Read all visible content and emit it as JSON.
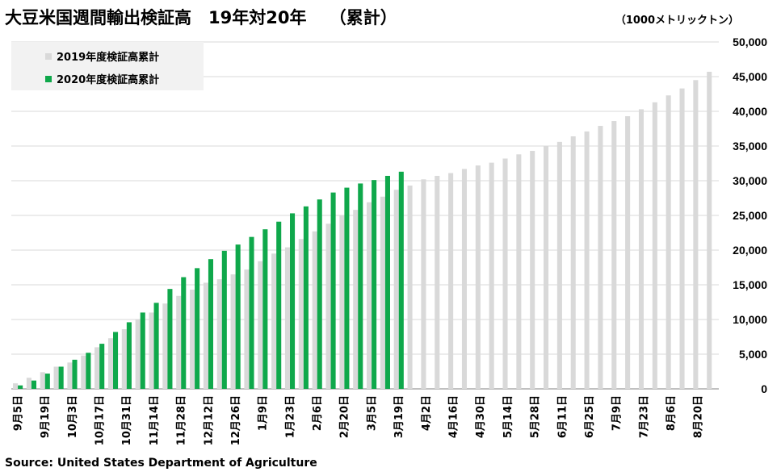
{
  "title": "大豆米国週間輸出検証高　19年対20年　 （累計）",
  "unit_label": "（1000メトリックトン）",
  "source": "Source: United States Department of Agriculture",
  "colors": {
    "series_2019": "#d9d9d9",
    "series_2020": "#0fa84b",
    "grid": "#d9d9d9",
    "axis": "#808080"
  },
  "chart_data": {
    "type": "bar",
    "title": "大豆米国週間輸出検証高　19年対20年　 （累計）",
    "ylabel": "1000メトリックトン",
    "ylim": [
      0,
      50000
    ],
    "yticks": [
      "0",
      "5,000",
      "10,000",
      "15,000",
      "20,000",
      "25,000",
      "30,000",
      "35,000",
      "40,000",
      "45,000",
      "50,000"
    ],
    "xtick_labels": [
      "9月5日",
      "9月19日",
      "10月3日",
      "10月17日",
      "10月31日",
      "11月14日",
      "11月28日",
      "12月12日",
      "12月26日",
      "1月9日",
      "1月23日",
      "2月6日",
      "2月20日",
      "3月5日",
      "3月19日",
      "4月2日",
      "4月16日",
      "4月30日",
      "5月14日",
      "5月28日",
      "6月11日",
      "6月25日",
      "7月9日",
      "7月23日",
      "8月6日",
      "8月20日"
    ],
    "series": [
      {
        "name": "2019年度検証高累計",
        "values": [
          800,
          1600,
          2400,
          3200,
          3800,
          4800,
          6000,
          7300,
          8600,
          10000,
          11000,
          12300,
          13400,
          14300,
          15300,
          15800,
          16500,
          17200,
          18400,
          19500,
          20400,
          21600,
          22700,
          23800,
          25000,
          25800,
          26900,
          27700,
          28700,
          29300,
          30200,
          30700,
          31100,
          31700,
          32200,
          32600,
          33200,
          33800,
          34300,
          35000,
          35600,
          36400,
          37100,
          37900,
          38600,
          39300,
          40300,
          41300,
          42300,
          43300,
          44500,
          45700
        ]
      },
      {
        "name": "2020年度検証高累計",
        "values": [
          500,
          1200,
          2200,
          3200,
          4200,
          5200,
          6500,
          8200,
          9600,
          11000,
          12400,
          14400,
          16100,
          17400,
          18700,
          19900,
          20800,
          21900,
          23000,
          24100,
          25300,
          26300,
          27300,
          28300,
          29000,
          29600,
          30100,
          30700,
          31300
        ]
      }
    ]
  },
  "legend": {
    "item_2019": "2019年度検証高累計",
    "item_2020": "2020年度検証高累計"
  }
}
